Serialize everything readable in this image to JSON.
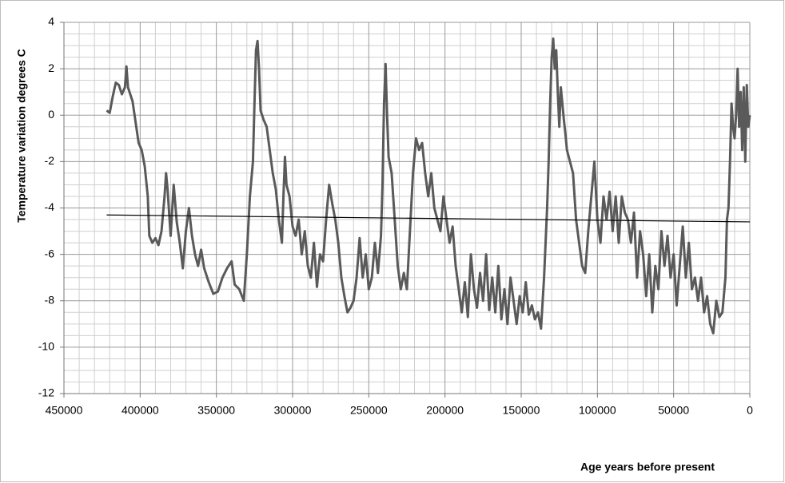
{
  "chart_data": {
    "type": "line",
    "xlabel": "Age years before present",
    "ylabel": "Temperature variation degrees C",
    "xlim": [
      450000,
      0
    ],
    "xticks": [
      450000,
      400000,
      350000,
      300000,
      250000,
      200000,
      150000,
      100000,
      50000,
      0
    ],
    "ylim": [
      -12,
      4
    ],
    "yticks": [
      -12,
      -10,
      -8,
      -6,
      -4,
      -2,
      0,
      2,
      4
    ],
    "grid": true,
    "series": [
      {
        "color": "#5a5a5a",
        "x": [
          422000,
          420000,
          418000,
          416000,
          414000,
          412000,
          410000,
          409000,
          408000,
          405000,
          403000,
          401000,
          399000,
          397000,
          395000,
          394000,
          392000,
          390000,
          388000,
          386000,
          384000,
          383000,
          382000,
          380000,
          378000,
          376000,
          374000,
          372000,
          370000,
          368000,
          366000,
          364000,
          362000,
          360000,
          358000,
          355000,
          352000,
          349000,
          346000,
          343000,
          340000,
          338000,
          335000,
          332000,
          330000,
          328000,
          326000,
          325000,
          324000,
          323000,
          322000,
          321000,
          319000,
          317000,
          315000,
          313000,
          311000,
          309000,
          307000,
          306000,
          305000,
          304000,
          302000,
          300000,
          298000,
          296000,
          294000,
          292000,
          290000,
          288000,
          286000,
          284000,
          282000,
          280000,
          278000,
          276000,
          274000,
          272000,
          270000,
          268000,
          266000,
          264000,
          262000,
          260000,
          258000,
          256000,
          254000,
          252000,
          250000,
          248000,
          246000,
          244000,
          242000,
          241000,
          240000,
          239000,
          238000,
          237000,
          235000,
          233000,
          231000,
          229000,
          227000,
          225000,
          223000,
          221000,
          219000,
          217000,
          215000,
          213000,
          211000,
          209000,
          207000,
          205000,
          203000,
          201000,
          199000,
          197000,
          195000,
          193000,
          191000,
          189000,
          187000,
          185000,
          183000,
          181000,
          179000,
          177000,
          175000,
          173000,
          171000,
          169000,
          167000,
          165000,
          163000,
          161000,
          159000,
          157000,
          155000,
          153000,
          151000,
          149000,
          147000,
          145000,
          143000,
          141000,
          139000,
          137000,
          135000,
          133000,
          132000,
          131000,
          130000,
          129000,
          128000,
          127000,
          126000,
          125000,
          124000,
          123000,
          122000,
          121000,
          120000,
          118000,
          116000,
          114000,
          112000,
          110000,
          108000,
          106000,
          104000,
          102000,
          100000,
          98000,
          96000,
          94000,
          92000,
          90000,
          88000,
          86000,
          84000,
          82000,
          80000,
          78000,
          76000,
          74000,
          72000,
          70000,
          68000,
          66000,
          64000,
          62000,
          60000,
          58000,
          56000,
          54000,
          52000,
          50000,
          48000,
          46000,
          44000,
          42000,
          40000,
          38000,
          36000,
          34000,
          32000,
          30000,
          28000,
          26000,
          24000,
          22000,
          20000,
          18000,
          16000,
          15000,
          14000,
          13000,
          12000,
          11000,
          10000,
          9000,
          8000,
          7000,
          6000,
          5000,
          4000,
          3000,
          2000,
          1000,
          0
        ],
        "values": [
          0.2,
          0.1,
          0.8,
          1.4,
          1.3,
          0.9,
          1.2,
          2.1,
          1.2,
          0.6,
          -0.3,
          -1.2,
          -1.5,
          -2.2,
          -3.5,
          -5.2,
          -5.5,
          -5.3,
          -5.6,
          -5.0,
          -3.5,
          -2.5,
          -3.2,
          -5.2,
          -3.0,
          -4.6,
          -5.5,
          -6.6,
          -5.0,
          -4.0,
          -5.2,
          -6.0,
          -6.5,
          -5.8,
          -6.6,
          -7.2,
          -7.7,
          -7.6,
          -7.0,
          -6.6,
          -6.3,
          -7.3,
          -7.5,
          -8.0,
          -6.0,
          -3.5,
          -2.0,
          0.5,
          2.8,
          3.2,
          2.0,
          0.2,
          -0.2,
          -0.5,
          -1.5,
          -2.5,
          -3.2,
          -4.5,
          -5.5,
          -3.5,
          -1.8,
          -3.0,
          -3.5,
          -4.8,
          -5.2,
          -4.5,
          -6.0,
          -5.0,
          -6.5,
          -7.0,
          -5.5,
          -7.4,
          -6.0,
          -6.3,
          -4.5,
          -3.0,
          -3.8,
          -4.5,
          -5.5,
          -7.0,
          -7.8,
          -8.5,
          -8.3,
          -8.0,
          -7.0,
          -5.3,
          -7.0,
          -6.0,
          -7.5,
          -7.0,
          -5.5,
          -6.8,
          -5.2,
          -3.0,
          0.5,
          2.2,
          0.0,
          -1.8,
          -2.5,
          -4.5,
          -6.5,
          -7.5,
          -6.8,
          -7.5,
          -5.0,
          -2.5,
          -1.0,
          -1.5,
          -1.2,
          -2.5,
          -3.5,
          -2.5,
          -4.0,
          -4.5,
          -5.0,
          -3.5,
          -4.5,
          -5.5,
          -4.8,
          -6.5,
          -7.5,
          -8.5,
          -7.2,
          -8.7,
          -6.0,
          -7.5,
          -8.3,
          -6.8,
          -8.0,
          -6.0,
          -8.4,
          -7.0,
          -8.5,
          -6.5,
          -8.8,
          -7.5,
          -9.0,
          -7.0,
          -8.0,
          -9.0,
          -7.8,
          -8.5,
          -7.2,
          -8.6,
          -8.2,
          -8.8,
          -8.5,
          -9.2,
          -7.0,
          -4.0,
          -2.0,
          0.5,
          2.5,
          3.3,
          2.0,
          2.8,
          1.0,
          -0.5,
          1.2,
          0.5,
          -0.2,
          -0.8,
          -1.5,
          -2.0,
          -2.5,
          -4.5,
          -5.5,
          -6.5,
          -6.8,
          -5.0,
          -3.5,
          -2.0,
          -4.5,
          -5.5,
          -3.5,
          -4.5,
          -3.3,
          -5.0,
          -3.5,
          -5.5,
          -3.5,
          -4.2,
          -4.5,
          -5.5,
          -4.2,
          -7.0,
          -5.0,
          -6.0,
          -7.8,
          -6.0,
          -8.5,
          -6.5,
          -7.5,
          -5.0,
          -6.5,
          -5.2,
          -7.0,
          -6.0,
          -8.2,
          -6.5,
          -4.8,
          -7.0,
          -5.5,
          -7.5,
          -7.0,
          -8.0,
          -7.0,
          -8.5,
          -7.8,
          -9.0,
          -9.4,
          -8.0,
          -8.7,
          -8.5,
          -7.0,
          -4.5,
          -4.0,
          -2.0,
          0.5,
          -0.5,
          -1.0,
          0.0,
          2.0,
          -0.5,
          1.0,
          -1.5,
          1.2,
          -2.0,
          1.3,
          -0.5,
          0.0
        ]
      },
      {
        "color": "#000000",
        "x": [
          422000,
          0
        ],
        "values": [
          -4.3,
          -4.6
        ]
      }
    ]
  }
}
